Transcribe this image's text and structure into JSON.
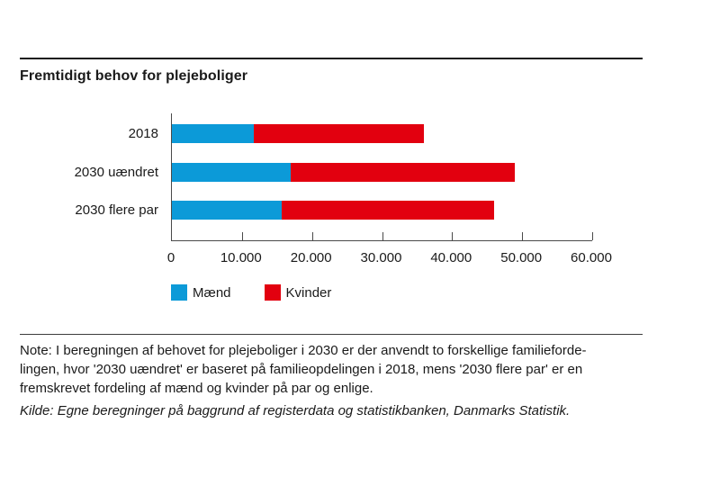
{
  "title": "Fremtidigt behov for plejeboliger",
  "note": "Note: I beregningen af behovet for plejeboliger i 2030 er der anvendt to forskellige familieforde-\nlingen, hvor '2030 uændret' er baseret på familieopdelingen i 2018, mens '2030 flere par' er en\nfremskrevet fordeling af mænd og kvinder på par og enlige.",
  "source": "Kilde: Egne beregninger på baggrund af registerdata og statistikbanken, Danmarks Statistik.",
  "chart_data": {
    "type": "bar",
    "orientation": "horizontal",
    "stacked": true,
    "title": "Fremtidigt behov for plejeboliger",
    "categories": [
      "2018",
      "2030 uændret",
      "2030 flere par"
    ],
    "series": [
      {
        "name": "Mænd",
        "color": "#0c9ad8",
        "values": [
          11700,
          17000,
          15700
        ]
      },
      {
        "name": "Kvinder",
        "color": "#e2000f",
        "values": [
          24300,
          32000,
          30300
        ]
      }
    ],
    "totals": [
      36000,
      49000,
      46000
    ],
    "xlim": [
      0,
      60000
    ],
    "x_ticks": [
      0,
      10000,
      20000,
      30000,
      40000,
      50000,
      60000
    ],
    "x_tick_labels": [
      "0",
      "10.000",
      "20.000",
      "30.000",
      "40.000",
      "50.000",
      "60.000"
    ],
    "xlabel": "",
    "ylabel": "",
    "grid": false,
    "legend_position": "bottom"
  }
}
